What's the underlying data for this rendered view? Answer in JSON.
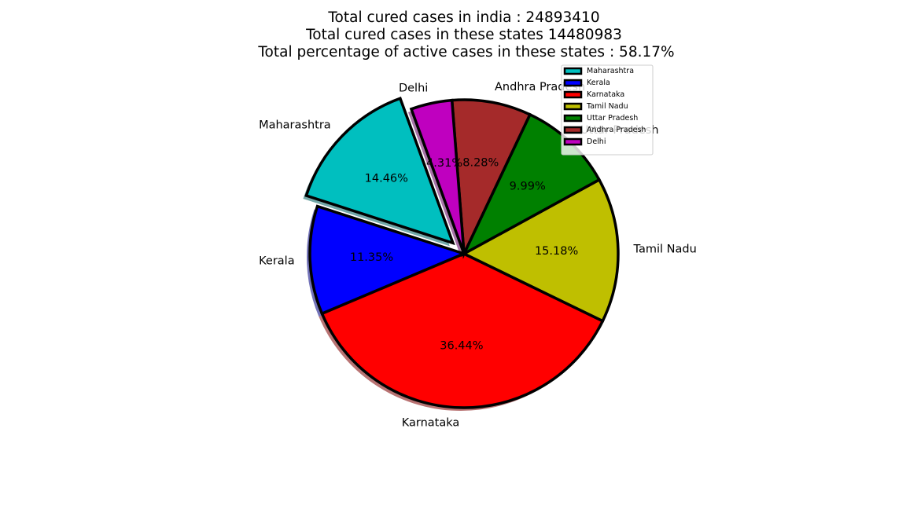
{
  "chart_data": {
    "type": "pie",
    "title": [
      "Total cured cases in india  : 24893410",
      "Total cured cases in these states 14480983",
      "Total percentage of active cases in these states : 58.17%"
    ],
    "slices": [
      {
        "label": "Maharashtra",
        "value": 14.46,
        "pct_label": "14.46%",
        "color": "#00bfbf",
        "explode": true
      },
      {
        "label": "Kerala",
        "value": 11.35,
        "pct_label": "11.35%",
        "color": "#0000ff",
        "explode": false
      },
      {
        "label": "Karnataka",
        "value": 36.44,
        "pct_label": "36.44%",
        "color": "#ff0000",
        "explode": false
      },
      {
        "label": "Tamil Nadu",
        "value": 15.18,
        "pct_label": "15.18%",
        "color": "#bfbf00",
        "explode": false
      },
      {
        "label": "Uttar Pradesh",
        "value": 9.99,
        "pct_label": "9.99%",
        "color": "#008000",
        "explode": false
      },
      {
        "label": "Andhra Pradesh",
        "value": 8.28,
        "pct_label": "8.28%",
        "color": "#a52a2a",
        "explode": false
      },
      {
        "label": "Delhi",
        "value": 4.31,
        "pct_label": "4.31%",
        "color": "#bf00bf",
        "explode": false
      }
    ],
    "start_angle_deg": 110,
    "direction": "counterclockwise",
    "shadow": true,
    "legend": {
      "position": "upper-right",
      "entries": [
        "Maharashtra",
        "Kerala",
        "Karnataka",
        "Tamil Nadu",
        "Uttar Pradesh",
        "Andhra Pradesh",
        "Delhi"
      ]
    }
  }
}
